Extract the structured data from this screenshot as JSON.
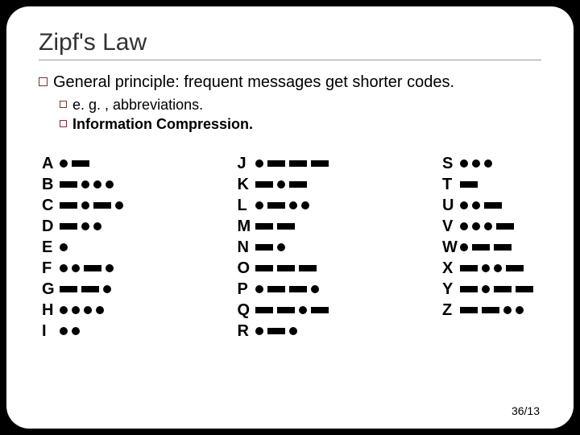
{
  "title": "Zipf's Law",
  "bullets": {
    "b1": "General principle: frequent messages get shorter codes.",
    "b2a": "e. g. , abbreviations.",
    "b2b": "Information Compression."
  },
  "morse": [
    [
      {
        "l": "A",
        "c": ".-"
      },
      {
        "l": "B",
        "c": "-..."
      },
      {
        "l": "C",
        "c": "-.-."
      },
      {
        "l": "D",
        "c": "-.."
      },
      {
        "l": "E",
        "c": "."
      },
      {
        "l": "F",
        "c": "..-."
      },
      {
        "l": "G",
        "c": "--."
      },
      {
        "l": "H",
        "c": "...."
      },
      {
        "l": "I",
        "c": ".."
      }
    ],
    [
      {
        "l": "J",
        "c": ".---"
      },
      {
        "l": "K",
        "c": "-.-"
      },
      {
        "l": "L",
        "c": ".-.."
      },
      {
        "l": "M",
        "c": "--"
      },
      {
        "l": "N",
        "c": "-."
      },
      {
        "l": "O",
        "c": "---"
      },
      {
        "l": "P",
        "c": ".--."
      },
      {
        "l": "Q",
        "c": "--.-"
      },
      {
        "l": "R",
        "c": ".-."
      }
    ],
    [
      {
        "l": "S",
        "c": "..."
      },
      {
        "l": "T",
        "c": "-"
      },
      {
        "l": "U",
        "c": "..-"
      },
      {
        "l": "V",
        "c": "...-"
      },
      {
        "l": "W",
        "c": ".--"
      },
      {
        "l": "X",
        "c": "-..-"
      },
      {
        "l": "Y",
        "c": "-.--"
      },
      {
        "l": "Z",
        "c": "--.."
      }
    ]
  ],
  "pageNumber": "36/13",
  "colors": {
    "background": "#000000",
    "slide": "#ffffff",
    "bulletBorder": "#8b2a2a",
    "text": "#000000"
  }
}
